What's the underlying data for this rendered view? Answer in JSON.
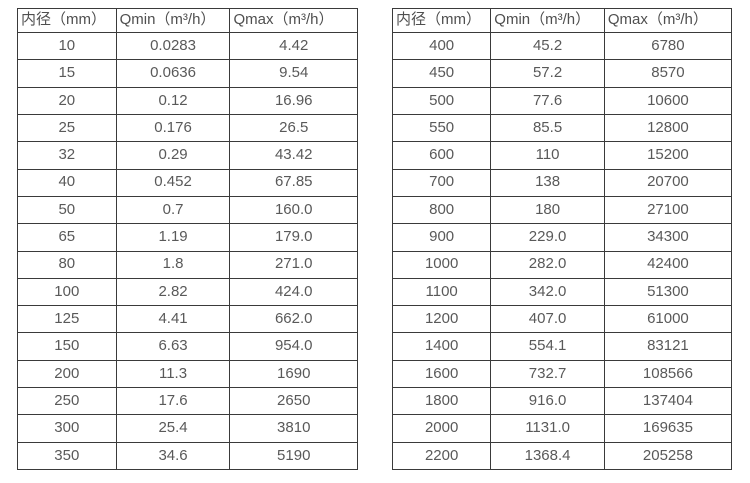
{
  "colors": {
    "background": "#ffffff",
    "border": "#3a3a3a",
    "text": "#595959"
  },
  "chart_data": [
    {
      "type": "table",
      "title": "",
      "columns": [
        "内径（mm）",
        "Qmin（m³/h）",
        "Qmax（m³/h）"
      ],
      "rows": [
        [
          "10",
          "0.0283",
          "4.42"
        ],
        [
          "15",
          "0.0636",
          "9.54"
        ],
        [
          "20",
          "0.12",
          "16.96"
        ],
        [
          "25",
          "0.176",
          "26.5"
        ],
        [
          "32",
          "0.29",
          "43.42"
        ],
        [
          "40",
          "0.452",
          "67.85"
        ],
        [
          "50",
          "0.7",
          "160.0"
        ],
        [
          "65",
          "1.19",
          "179.0"
        ],
        [
          "80",
          "1.8",
          "271.0"
        ],
        [
          "100",
          "2.82",
          "424.0"
        ],
        [
          "125",
          "4.41",
          "662.0"
        ],
        [
          "150",
          "6.63",
          "954.0"
        ],
        [
          "200",
          "11.3",
          "1690"
        ],
        [
          "250",
          "17.6",
          "2650"
        ],
        [
          "300",
          "25.4",
          "3810"
        ],
        [
          "350",
          "34.6",
          "5190"
        ]
      ]
    },
    {
      "type": "table",
      "title": "",
      "columns": [
        "内径（mm）",
        "Qmin（m³/h）",
        "Qmax（m³/h）"
      ],
      "rows": [
        [
          "400",
          "45.2",
          "6780"
        ],
        [
          "450",
          "57.2",
          "8570"
        ],
        [
          "500",
          "77.6",
          "10600"
        ],
        [
          "550",
          "85.5",
          "12800"
        ],
        [
          "600",
          "110",
          "15200"
        ],
        [
          "700",
          "138",
          "20700"
        ],
        [
          "800",
          "180",
          "27100"
        ],
        [
          "900",
          "229.0",
          "34300"
        ],
        [
          "1000",
          "282.0",
          "42400"
        ],
        [
          "1100",
          "342.0",
          "51300"
        ],
        [
          "1200",
          "407.0",
          "61000"
        ],
        [
          "1400",
          "554.1",
          "83121"
        ],
        [
          "1600",
          "732.7",
          "108566"
        ],
        [
          "1800",
          "916.0",
          "137404"
        ],
        [
          "2000",
          "1131.0",
          "169635"
        ],
        [
          "2200",
          "1368.4",
          "205258"
        ]
      ]
    }
  ]
}
